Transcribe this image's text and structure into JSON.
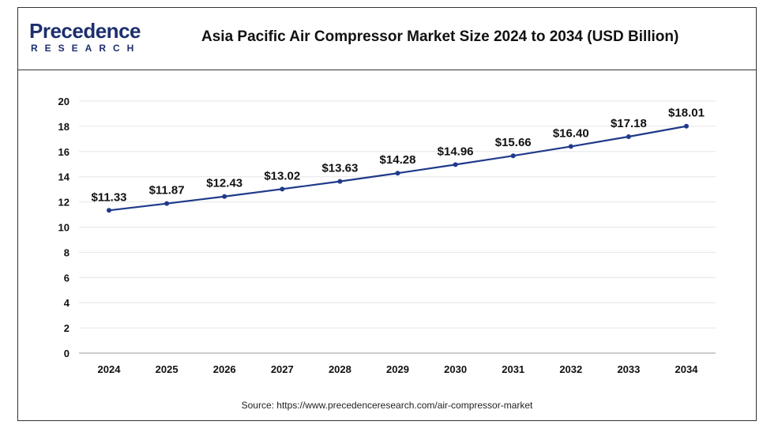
{
  "header": {
    "logo_main": "Precedence",
    "logo_sub": "RESEARCH",
    "title": "Asia Pacific Air Compressor Market Size 2024 to 2034 (USD Billion)"
  },
  "source": "Source: https://www.precedenceresearch.com/air-compressor-market",
  "colors": {
    "line": "#1f3a8a",
    "brand": "#1c2f6e",
    "grid": "#e6e6e6"
  },
  "chart_data": {
    "type": "line",
    "title": "Asia Pacific Air Compressor Market Size 2024 to 2034 (USD Billion)",
    "categories": [
      "2024",
      "2025",
      "2026",
      "2027",
      "2028",
      "2029",
      "2030",
      "2031",
      "2032",
      "2033",
      "2034"
    ],
    "values": [
      11.33,
      11.87,
      12.43,
      13.02,
      13.63,
      14.28,
      14.96,
      15.66,
      16.4,
      17.18,
      18.01
    ],
    "data_labels": [
      "$11.33",
      "$11.87",
      "$12.43",
      "$13.02",
      "$13.63",
      "$14.28",
      "$14.96",
      "$15.66",
      "$16.40",
      "$17.18",
      "$18.01"
    ],
    "ylim": [
      0,
      20
    ],
    "yticks": [
      0,
      2,
      4,
      6,
      8,
      10,
      12,
      14,
      16,
      18,
      20
    ],
    "xlabel": "",
    "ylabel": "",
    "grid": true,
    "legend": "none"
  }
}
